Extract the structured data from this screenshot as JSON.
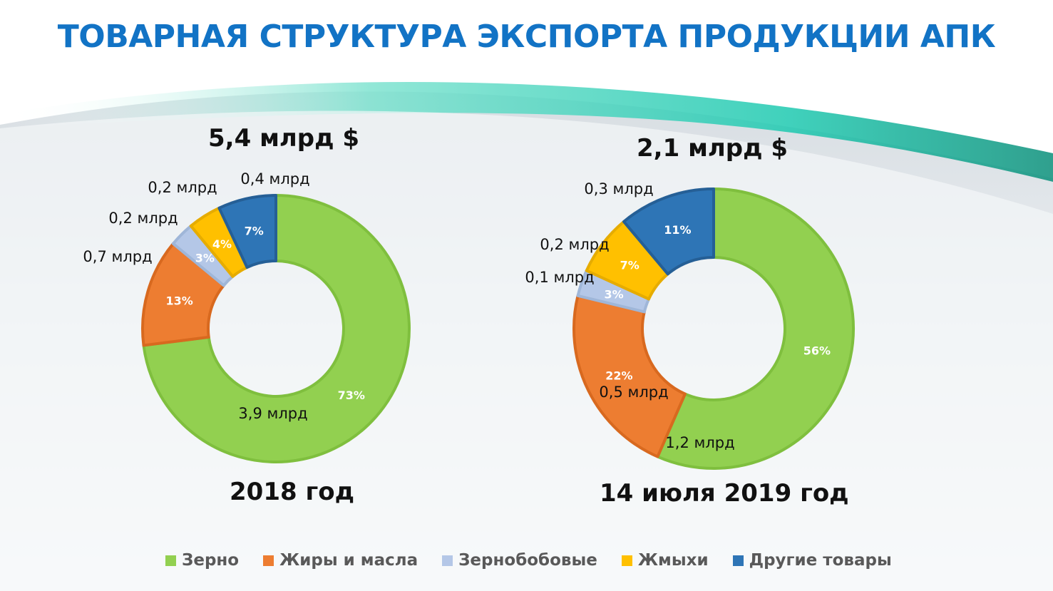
{
  "title": "ТОВАРНАЯ СТРУКТУРА ЭКСПОРТА ПРОДУКЦИИ АПК",
  "colors": {
    "title": "#1273c5",
    "series": [
      "#92d050",
      "#ed7d31",
      "#b4c7e7",
      "#ffc000",
      "#2e75b6"
    ],
    "borders": [
      "#7fbf3e",
      "#d8691f",
      "#9fb6d8",
      "#e6ac00",
      "#255f96"
    ]
  },
  "chart_data": [
    {
      "type": "pie",
      "variant": "donut",
      "total_label": "5,4 млрд $",
      "period_label": "2018 год",
      "series": [
        {
          "name": "Зерно",
          "percent": 73,
          "percent_label": "73%",
          "value_label": "3,9 млрд"
        },
        {
          "name": "Жиры и масла",
          "percent": 13,
          "percent_label": "13%",
          "value_label": "0,7 млрд"
        },
        {
          "name": "Зернобобовые",
          "percent": 3,
          "percent_label": "3%",
          "value_label": "0,2 млрд"
        },
        {
          "name": "Жмыхи",
          "percent": 4,
          "percent_label": "4%",
          "value_label": "0,2 млрд"
        },
        {
          "name": "Другие товары",
          "percent": 7,
          "percent_label": "7%",
          "value_label": "0,4 млрд"
        }
      ]
    },
    {
      "type": "pie",
      "variant": "donut",
      "total_label": "2,1 млрд $",
      "period_label": "14 июля 2019 год",
      "series": [
        {
          "name": "Зерно",
          "percent": 56,
          "percent_label": "56%",
          "value_label": "1,2 млрд"
        },
        {
          "name": "Жиры и масла",
          "percent": 22,
          "percent_label": "22%",
          "value_label": "0,5 млрд"
        },
        {
          "name": "Зернобобовые",
          "percent": 3,
          "percent_label": "3%",
          "value_label": "0,1 млрд"
        },
        {
          "name": "Жмыхи",
          "percent": 7,
          "percent_label": "7%",
          "value_label": "0,2 млрд"
        },
        {
          "name": "Другие товары",
          "percent": 11,
          "percent_label": "11%",
          "value_label": "0,3 млрд"
        }
      ]
    }
  ],
  "legend": {
    "placement": "bottom",
    "items": [
      "Зерно",
      "Жиры и масла",
      "Зернобобовые",
      "Жмыхи",
      "Другие товары"
    ]
  }
}
